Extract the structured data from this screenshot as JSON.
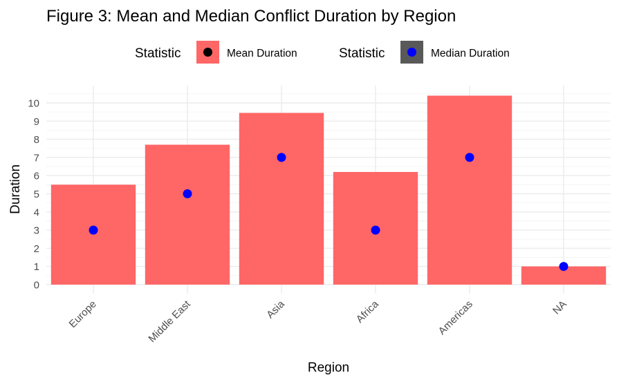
{
  "chart_data": {
    "type": "bar",
    "title": "Figure 3: Mean and Median Conflict Duration by Region",
    "xlabel": "Region",
    "ylabel": "Duration",
    "categories": [
      "Europe",
      "Middle East",
      "Asia",
      "Africa",
      "Americas",
      "NA"
    ],
    "series": [
      {
        "name": "Mean Duration",
        "mark": "bar",
        "color": "#ff6666",
        "values": [
          5.5,
          7.7,
          9.45,
          6.2,
          10.4,
          1.0
        ]
      },
      {
        "name": "Median Duration",
        "mark": "point",
        "color": "#0000ff",
        "values": [
          3,
          5,
          7,
          3,
          7,
          1
        ]
      }
    ],
    "ylim": [
      -0.6,
      10.5
    ],
    "y_ticks": [
      0,
      1,
      2,
      3,
      4,
      5,
      6,
      7,
      8,
      9,
      10
    ],
    "x_tick_rotation": "45deg",
    "grid": true,
    "legend": {
      "position": "top",
      "groups": [
        {
          "title": "Statistic",
          "label": "Mean Duration",
          "key_fill": "#ff6666",
          "dot_color": "#000000"
        },
        {
          "title": "Statistic",
          "label": "Median Duration",
          "key_fill": "#595959",
          "dot_color": "#0000ff"
        }
      ]
    }
  }
}
